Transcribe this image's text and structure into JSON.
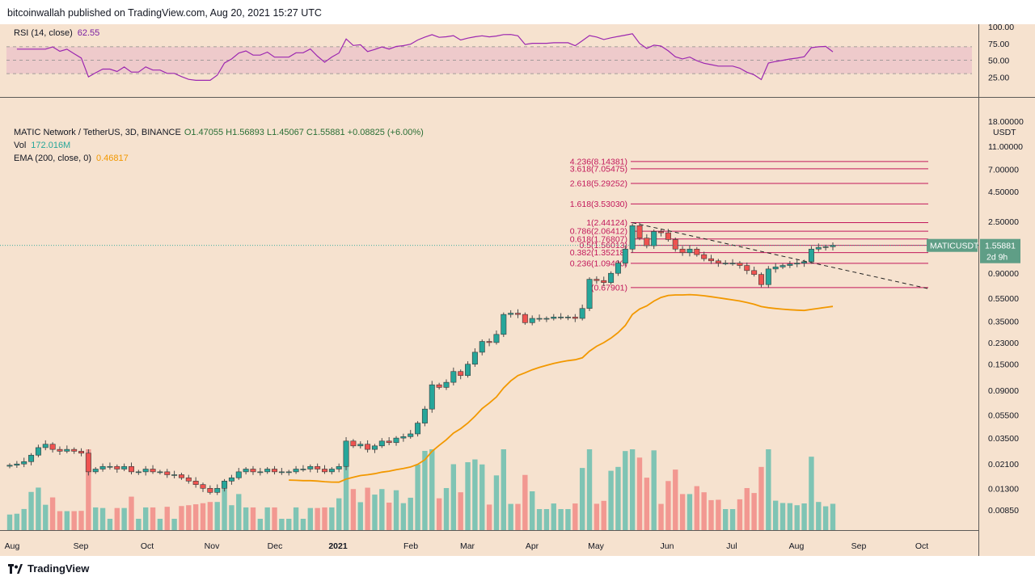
{
  "header": {
    "publisher": "bitcoinwallah published on TradingView.com, Aug 20, 2021 15:27 UTC"
  },
  "footer": {
    "brand": "TradingView"
  },
  "legend": {
    "rsi_label": "RSI (14, close)",
    "rsi_value": "62.55",
    "title": "MATIC Network / TetherUS, 3D, BINANCE",
    "ohlc": "O1.47055  H1.56893  L1.45067  C1.55881  +0.08825 (+6.00%)",
    "vol_label": "Vol",
    "vol_value": "172.016M",
    "ema_label": "EMA (200, close, 0)",
    "ema_value": "0.46817"
  },
  "price_tag": {
    "symbol": "MATICUSDT",
    "price": "1.55881",
    "countdown": "2d 9h"
  },
  "colors": {
    "up": "#26a69a",
    "down": "#ef5350",
    "vol_up": "#7fc4b4",
    "vol_down": "#f29891",
    "ema": "#f29800",
    "rsi": "#9c27b0",
    "fib": "#c2185b",
    "bg": "#f6e2cf"
  },
  "chart_data": {
    "type": "candlestick",
    "title": "MATIC Network / TetherUS, 3D, BINANCE",
    "y_scale": "log",
    "y_ticks": [
      "18.00000",
      "11.00000",
      "7.00000",
      "4.50000",
      "2.50000",
      "1.55881",
      "0.90000",
      "0.55000",
      "0.35000",
      "0.23000",
      "0.15000",
      "0.09000",
      "0.05500",
      "0.03500",
      "0.02100",
      "0.01300",
      "0.00850"
    ],
    "y_unit": "USDT",
    "x_ticks": [
      "Aug",
      "Sep",
      "Oct",
      "Nov",
      "Dec",
      "2021",
      "Feb",
      "Mar",
      "Apr",
      "May",
      "Jun",
      "Jul",
      "Aug",
      "Sep",
      "Oct"
    ],
    "rsi_ticks": [
      "100.00",
      "75.00",
      "50.00",
      "25.00"
    ],
    "fib_levels": [
      {
        "label": "4.236(8.14381)",
        "price": 8.14381
      },
      {
        "label": "3.618(7.05475)",
        "price": 7.05475
      },
      {
        "label": "2.618(5.29252)",
        "price": 5.29252
      },
      {
        "label": "1.618(3.53030)",
        "price": 3.5303
      },
      {
        "label": "1(2.44124)",
        "price": 2.44124
      },
      {
        "label": "0.786(2.06412)",
        "price": 2.06412
      },
      {
        "label": "0.618(1.76807)",
        "price": 1.76807
      },
      {
        "label": "0.5(1.56013)",
        "price": 1.56013
      },
      {
        "label": "0.382(1.35218)",
        "price": 1.35218
      },
      {
        "label": "0.236(1.09490)",
        "price": 1.0949
      },
      {
        "label": "0(0.67901)",
        "price": 0.67901
      }
    ],
    "closes": [
      0.0205,
      0.021,
      0.022,
      0.025,
      0.029,
      0.031,
      0.028,
      0.027,
      0.028,
      0.027,
      0.026,
      0.018,
      0.019,
      0.02,
      0.02,
      0.019,
      0.02,
      0.018,
      0.018,
      0.019,
      0.018,
      0.018,
      0.017,
      0.017,
      0.016,
      0.015,
      0.014,
      0.013,
      0.012,
      0.013,
      0.015,
      0.016,
      0.018,
      0.019,
      0.018,
      0.018,
      0.019,
      0.018,
      0.018,
      0.018,
      0.019,
      0.019,
      0.02,
      0.019,
      0.018,
      0.019,
      0.02,
      0.033,
      0.03,
      0.031,
      0.028,
      0.03,
      0.033,
      0.032,
      0.035,
      0.036,
      0.038,
      0.047,
      0.062,
      0.1,
      0.095,
      0.105,
      0.13,
      0.12,
      0.15,
      0.19,
      0.235,
      0.23,
      0.27,
      0.4,
      0.41,
      0.4,
      0.34,
      0.37,
      0.37,
      0.37,
      0.38,
      0.38,
      0.38,
      0.37,
      0.45,
      0.8,
      0.78,
      0.75,
      0.9,
      1.1,
      1.45,
      2.3,
      1.8,
      1.55,
      2.05,
      2.0,
      1.75,
      1.45,
      1.35,
      1.45,
      1.3,
      1.2,
      1.15,
      1.1,
      1.1,
      1.1,
      1.05,
      0.95,
      0.88,
      0.72,
      0.98,
      1.02,
      1.05,
      1.08,
      1.1,
      1.13,
      1.45,
      1.5,
      1.52,
      1.5588
    ],
    "ema200_start_index": 39,
    "ema200_last": 0.46817,
    "rsi_last": 62.55,
    "volume_unit": "relative"
  }
}
